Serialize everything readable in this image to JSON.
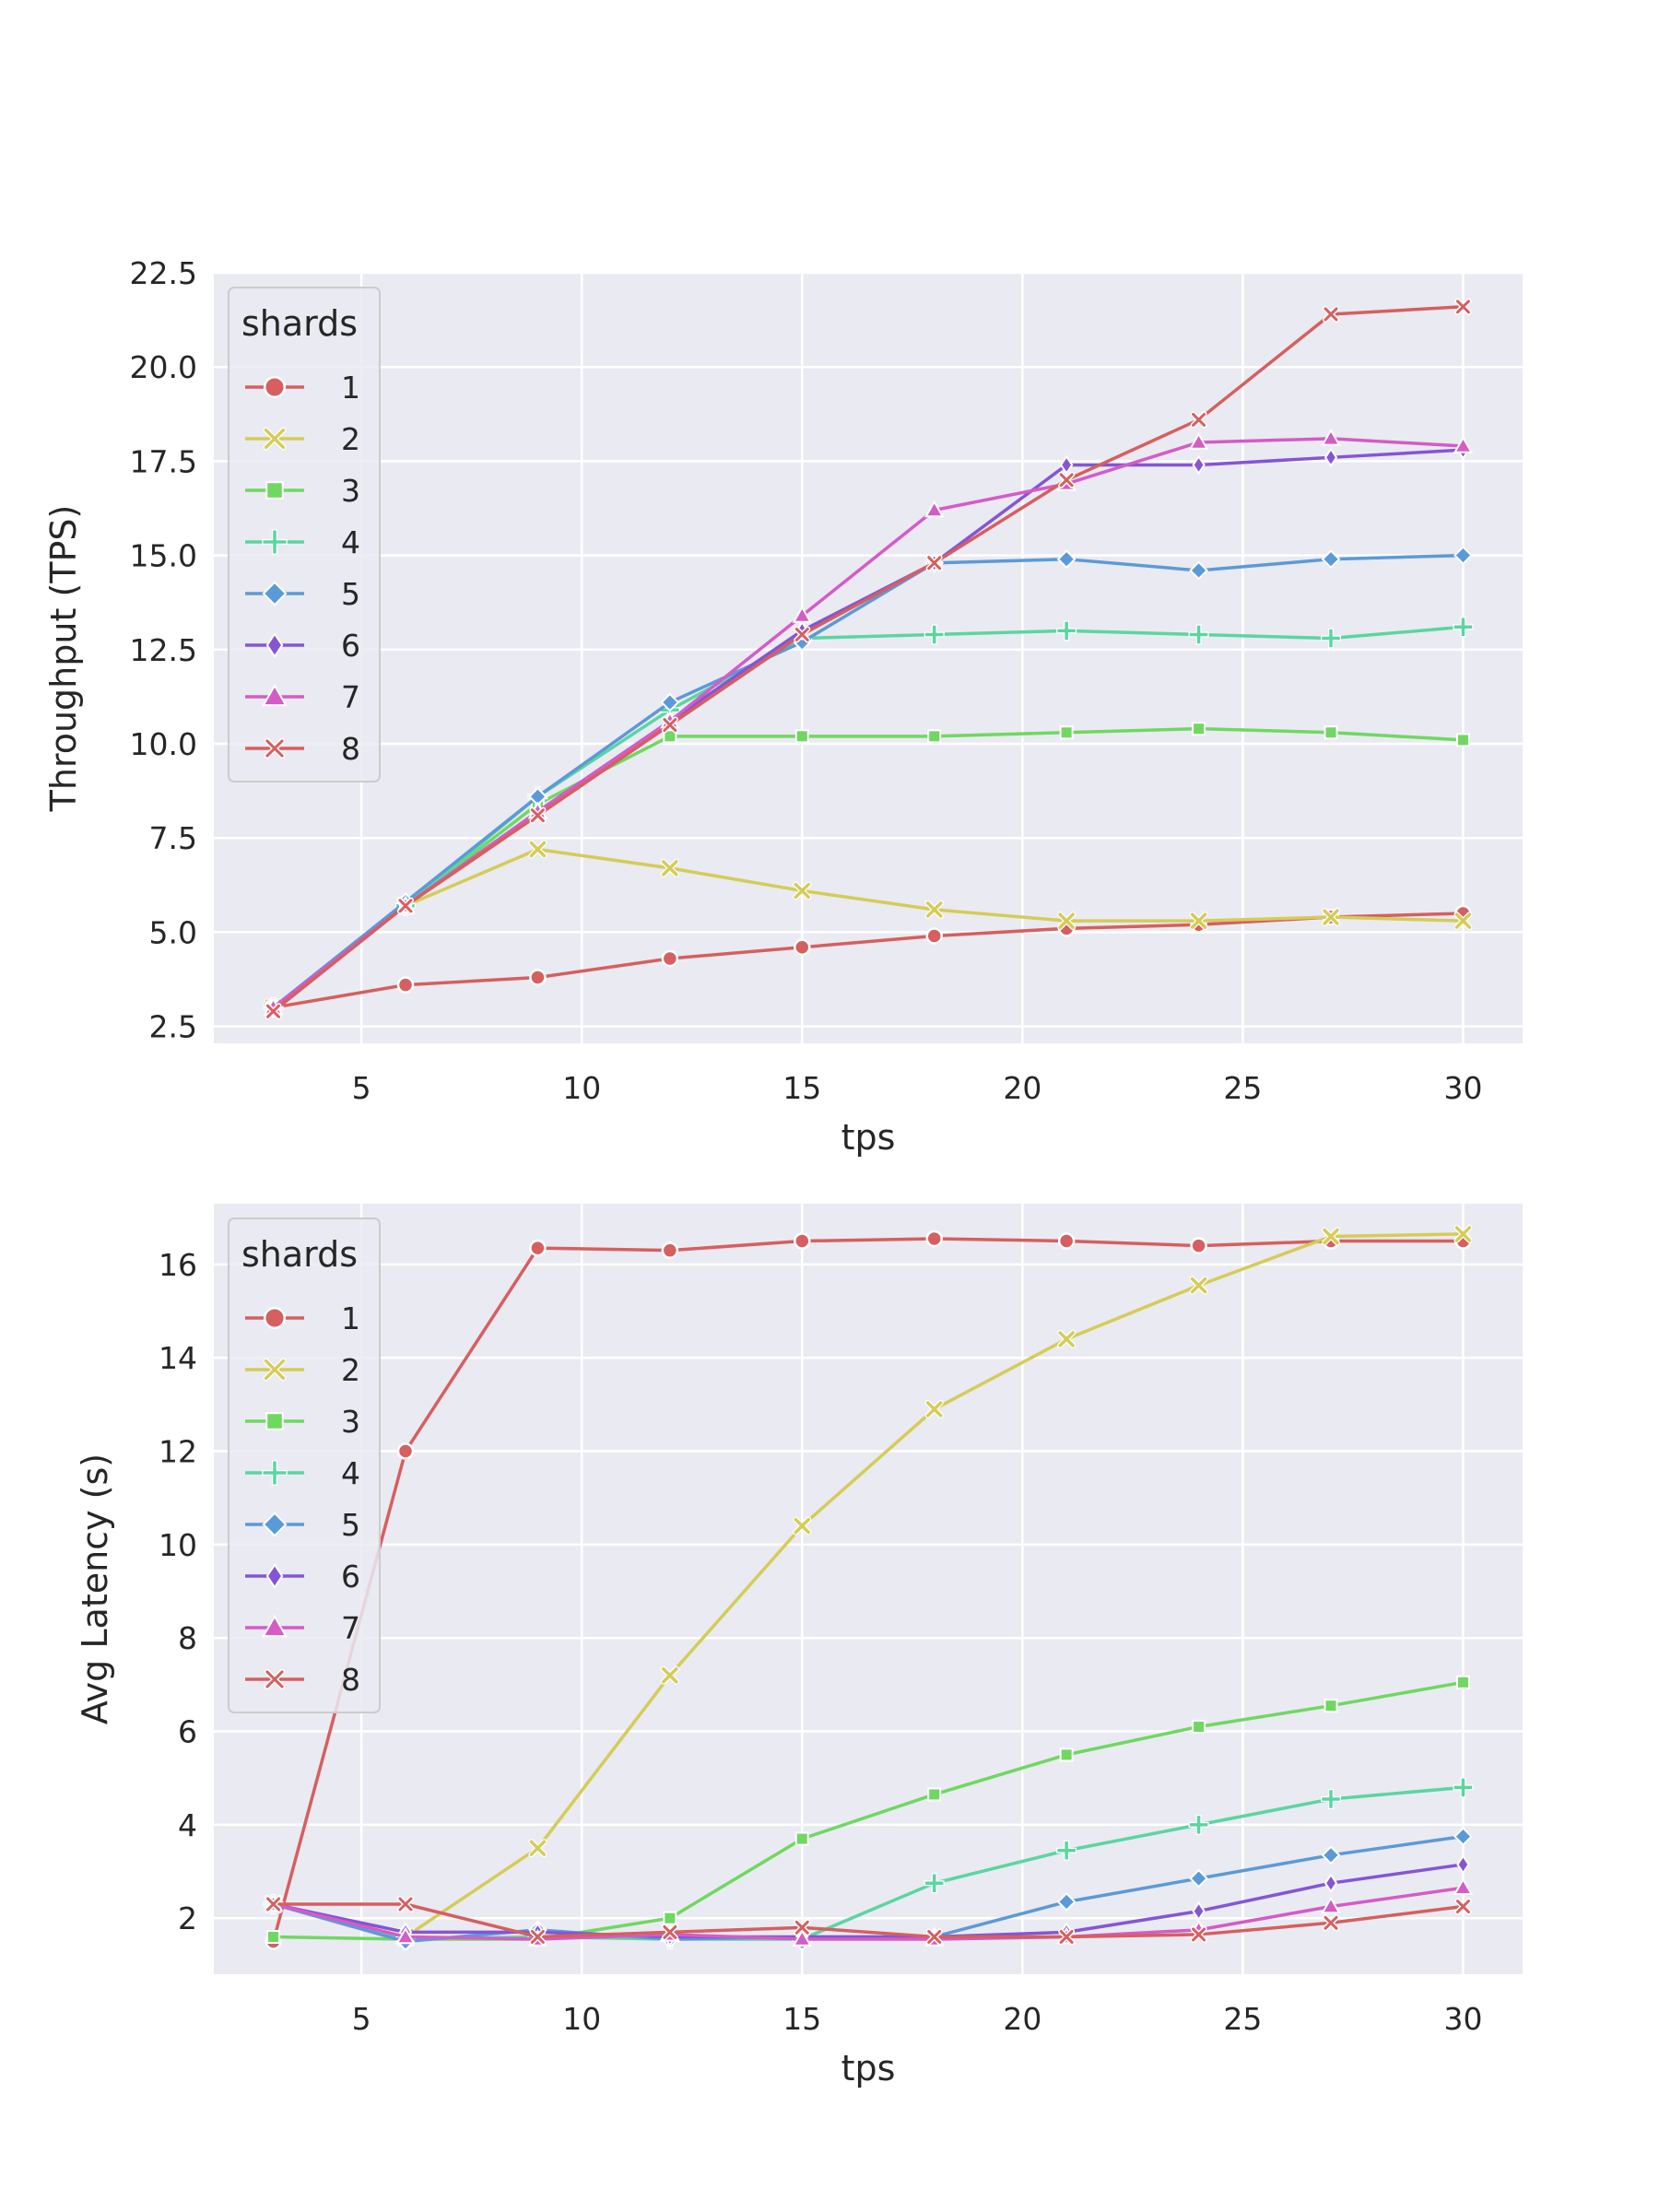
{
  "chart_data": [
    {
      "type": "line",
      "title": "",
      "xlabel": "tps",
      "ylabel": "Throughput (TPS)",
      "xlim": [
        1.65,
        31.35
      ],
      "ylim": [
        2.05,
        22.5
      ],
      "xticks": [
        5,
        10,
        15,
        20,
        25,
        30
      ],
      "yticks": [
        2.5,
        5.0,
        7.5,
        10.0,
        12.5,
        15.0,
        17.5,
        20.0,
        22.5
      ],
      "ytick_decimals": 1,
      "grid": true,
      "legend": {
        "title": "shards",
        "position": "top-left"
      },
      "x": [
        3,
        6,
        9,
        12,
        15,
        18,
        21,
        24,
        27,
        30
      ],
      "series": [
        {
          "name": "1",
          "color": "#d65f5f",
          "marker": "circle",
          "values": [
            3.0,
            3.6,
            3.8,
            4.3,
            4.6,
            4.9,
            5.1,
            5.2,
            5.4,
            5.5
          ]
        },
        {
          "name": "2",
          "color": "#d5cc57",
          "marker": "x",
          "values": [
            3.0,
            5.7,
            7.2,
            6.7,
            6.1,
            5.6,
            5.3,
            5.3,
            5.4,
            5.3
          ]
        },
        {
          "name": "3",
          "color": "#6fd860",
          "marker": "square",
          "values": [
            3.0,
            5.7,
            8.4,
            10.2,
            10.2,
            10.2,
            10.3,
            10.4,
            10.3,
            10.1
          ]
        },
        {
          "name": "4",
          "color": "#5ad6a0",
          "marker": "plus",
          "values": [
            3.0,
            5.7,
            8.6,
            10.9,
            12.8,
            12.9,
            13.0,
            12.9,
            12.8,
            13.1
          ]
        },
        {
          "name": "5",
          "color": "#5b9ad8",
          "marker": "diamond",
          "values": [
            3.0,
            5.8,
            8.6,
            11.1,
            12.7,
            14.8,
            14.9,
            14.6,
            14.9,
            15.0
          ]
        },
        {
          "name": "6",
          "color": "#8555d6",
          "marker": "thin-diamond",
          "values": [
            3.0,
            5.7,
            8.2,
            10.6,
            13.0,
            14.8,
            17.4,
            17.4,
            17.6,
            17.8
          ]
        },
        {
          "name": "7",
          "color": "#d55bc7",
          "marker": "triangle",
          "values": [
            3.0,
            5.7,
            8.2,
            10.6,
            13.4,
            16.2,
            16.9,
            18.0,
            18.1,
            17.9
          ]
        },
        {
          "name": "8",
          "color": "#d65f5f",
          "marker": "x-thin",
          "values": [
            2.9,
            5.7,
            8.1,
            10.5,
            12.9,
            14.8,
            17.0,
            18.6,
            21.4,
            21.6
          ]
        }
      ]
    },
    {
      "type": "line",
      "title": "",
      "xlabel": "tps",
      "ylabel": "Avg Latency (s)",
      "xlim": [
        1.65,
        31.35
      ],
      "ylim": [
        0.8,
        17.3
      ],
      "xticks": [
        5,
        10,
        15,
        20,
        25,
        30
      ],
      "yticks": [
        2,
        4,
        6,
        8,
        10,
        12,
        14,
        16
      ],
      "ytick_decimals": 0,
      "grid": true,
      "legend": {
        "title": "shards",
        "position": "top-left"
      },
      "x": [
        3,
        6,
        9,
        12,
        15,
        18,
        21,
        24,
        27,
        30
      ],
      "series": [
        {
          "name": "1",
          "color": "#d65f5f",
          "marker": "circle",
          "values": [
            1.5,
            12.0,
            16.35,
            16.3,
            16.5,
            16.55,
            16.5,
            16.4,
            16.5,
            16.5
          ]
        },
        {
          "name": "2",
          "color": "#d5cc57",
          "marker": "x",
          "values": [
            2.3,
            1.6,
            3.5,
            7.2,
            10.4,
            12.9,
            14.4,
            15.55,
            16.6,
            16.65
          ]
        },
        {
          "name": "3",
          "color": "#6fd860",
          "marker": "square",
          "values": [
            1.6,
            1.55,
            1.55,
            2.0,
            3.7,
            4.65,
            5.5,
            6.1,
            6.55,
            7.05
          ]
        },
        {
          "name": "4",
          "color": "#5ad6a0",
          "marker": "plus",
          "values": [
            2.3,
            1.55,
            1.6,
            1.55,
            1.55,
            2.75,
            3.45,
            4.0,
            4.55,
            4.8
          ]
        },
        {
          "name": "5",
          "color": "#5b9ad8",
          "marker": "diamond",
          "values": [
            2.3,
            1.5,
            1.75,
            1.55,
            1.6,
            1.6,
            2.35,
            2.85,
            3.35,
            3.75
          ]
        },
        {
          "name": "6",
          "color": "#8555d6",
          "marker": "thin-diamond",
          "values": [
            2.3,
            1.7,
            1.7,
            1.6,
            1.6,
            1.6,
            1.7,
            2.15,
            2.75,
            3.15
          ]
        },
        {
          "name": "7",
          "color": "#d55bc7",
          "marker": "triangle",
          "values": [
            2.3,
            1.6,
            1.55,
            1.65,
            1.55,
            1.55,
            1.6,
            1.75,
            2.25,
            2.65
          ]
        },
        {
          "name": "8",
          "color": "#d65f5f",
          "marker": "x-thin",
          "values": [
            2.3,
            2.3,
            1.6,
            1.7,
            1.8,
            1.6,
            1.6,
            1.65,
            1.9,
            2.25
          ]
        }
      ]
    }
  ]
}
